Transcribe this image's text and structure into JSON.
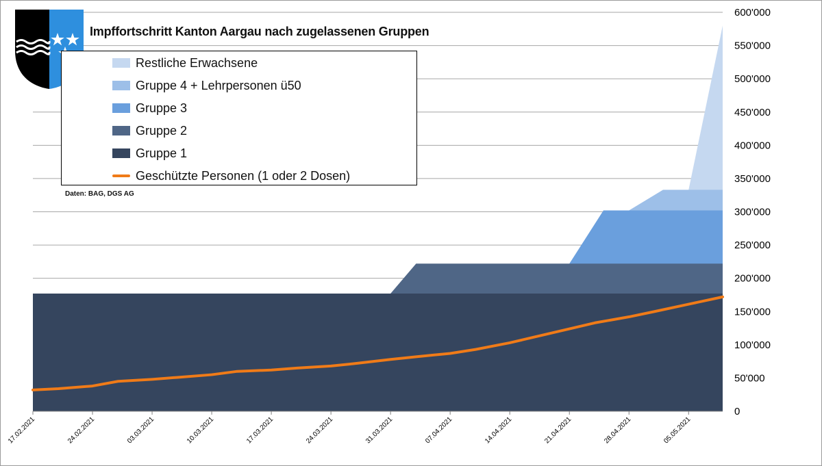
{
  "title": "Impffortschritt Kanton Aargau nach zugelassenen Gruppen",
  "source": "Daten: BAG, DGS AG",
  "logo": {
    "name": "Aargau coat of arms",
    "colors": {
      "left": "#000000",
      "right": "#2e8fde",
      "waves": "#ffffff",
      "stars": "#ffffff"
    }
  },
  "chart_data": {
    "type": "area",
    "x_ticks": [
      "17.02.2021",
      "24.02.2021",
      "03.03.2021",
      "10.03.2021",
      "17.03.2021",
      "24.03.2021",
      "31.03.2021",
      "07.04.2021",
      "14.04.2021",
      "21.04.2021",
      "28.04.2021",
      "05.05.2021"
    ],
    "x_range": [
      "17.02.2021",
      "09.05.2021"
    ],
    "y_ticks": [
      "0",
      "50'000",
      "100'000",
      "150'000",
      "200'000",
      "250'000",
      "300'000",
      "350'000",
      "400'000",
      "450'000",
      "500'000",
      "550'000",
      "600'000"
    ],
    "ylim": [
      0,
      600000
    ],
    "y_axis_side": "right",
    "grid": "horizontal",
    "legend_position": "top-left",
    "series": [
      {
        "name": "Restliche Erwachsene",
        "kind": "area",
        "color": "#c5d8f0",
        "points": [
          [
            "05.05.2021",
            333000
          ],
          [
            "09.05.2021",
            580000
          ]
        ]
      },
      {
        "name": "Gruppe 4 + Lehrpersonen ü50",
        "kind": "area",
        "color": "#9dbfe8",
        "points": [
          [
            "28.04.2021",
            302000
          ],
          [
            "02.05.2021",
            333000
          ],
          [
            "09.05.2021",
            333000
          ]
        ]
      },
      {
        "name": "Gruppe 3",
        "kind": "area",
        "color": "#6a9fdd",
        "points": [
          [
            "21.04.2021",
            222000
          ],
          [
            "25.04.2021",
            302000
          ],
          [
            "09.05.2021",
            302000
          ]
        ]
      },
      {
        "name": "Gruppe 2",
        "kind": "area",
        "color": "#4f6686",
        "points": [
          [
            "31.03.2021",
            177000
          ],
          [
            "03.04.2021",
            222000
          ],
          [
            "09.05.2021",
            222000
          ]
        ]
      },
      {
        "name": "Gruppe 1",
        "kind": "area",
        "color": "#35455e",
        "points": [
          [
            "17.02.2021",
            177000
          ],
          [
            "09.05.2021",
            177000
          ]
        ]
      },
      {
        "name": "Geschützte Personen (1 oder 2 Dosen)",
        "kind": "line",
        "color": "#f07b18",
        "points": [
          [
            "17.02.2021",
            32000
          ],
          [
            "20.02.2021",
            34000
          ],
          [
            "24.02.2021",
            38000
          ],
          [
            "27.02.2021",
            45000
          ],
          [
            "03.03.2021",
            48000
          ],
          [
            "06.03.2021",
            51000
          ],
          [
            "10.03.2021",
            55000
          ],
          [
            "13.03.2021",
            60000
          ],
          [
            "17.03.2021",
            62000
          ],
          [
            "20.03.2021",
            65000
          ],
          [
            "24.03.2021",
            68000
          ],
          [
            "27.03.2021",
            72000
          ],
          [
            "31.03.2021",
            78000
          ],
          [
            "03.04.2021",
            82000
          ],
          [
            "07.04.2021",
            87000
          ],
          [
            "10.04.2021",
            93000
          ],
          [
            "14.04.2021",
            103000
          ],
          [
            "17.04.2021",
            112000
          ],
          [
            "21.04.2021",
            124000
          ],
          [
            "24.04.2021",
            133000
          ],
          [
            "28.04.2021",
            142000
          ],
          [
            "01.05.2021",
            150000
          ],
          [
            "05.05.2021",
            161000
          ],
          [
            "09.05.2021",
            172000
          ]
        ]
      }
    ]
  }
}
